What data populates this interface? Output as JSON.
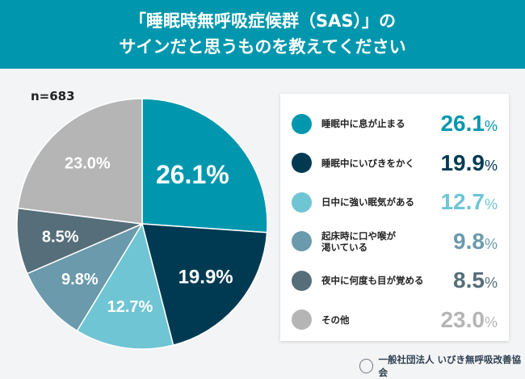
{
  "header": {
    "line1": "「睡眠時無呼吸症候群（SAS）」の",
    "line2": "サインだと思うものを教えてください"
  },
  "chart_data": {
    "type": "pie",
    "sample_size": "n=683",
    "unit": "%",
    "start": "top-clockwise",
    "legend_placement": "right",
    "slices": [
      {
        "label": "睡眠中に息が止まる",
        "value": 26.1,
        "display": "26.1",
        "color": "#0097ae"
      },
      {
        "label": "睡眠中にいびきをかく",
        "value": 19.9,
        "display": "19.9",
        "color": "#003a52"
      },
      {
        "label": "日中に強い眠気がある",
        "value": 12.7,
        "display": "12.7",
        "color": "#6fc5d3"
      },
      {
        "label": "起床時に口や喉が\n渇いている",
        "value": 9.8,
        "display": "9.8",
        "color": "#6a9aab"
      },
      {
        "label": "夜中に何度も目が覚める",
        "value": 8.5,
        "display": "8.5",
        "color": "#566e7a"
      },
      {
        "label": "その他",
        "value": 23.0,
        "display": "23.0",
        "color": "#b5b5b5"
      }
    ]
  },
  "footer": {
    "org": "一般社団法人 いびき無呼吸改善協会",
    "logo": "organization-logo"
  }
}
